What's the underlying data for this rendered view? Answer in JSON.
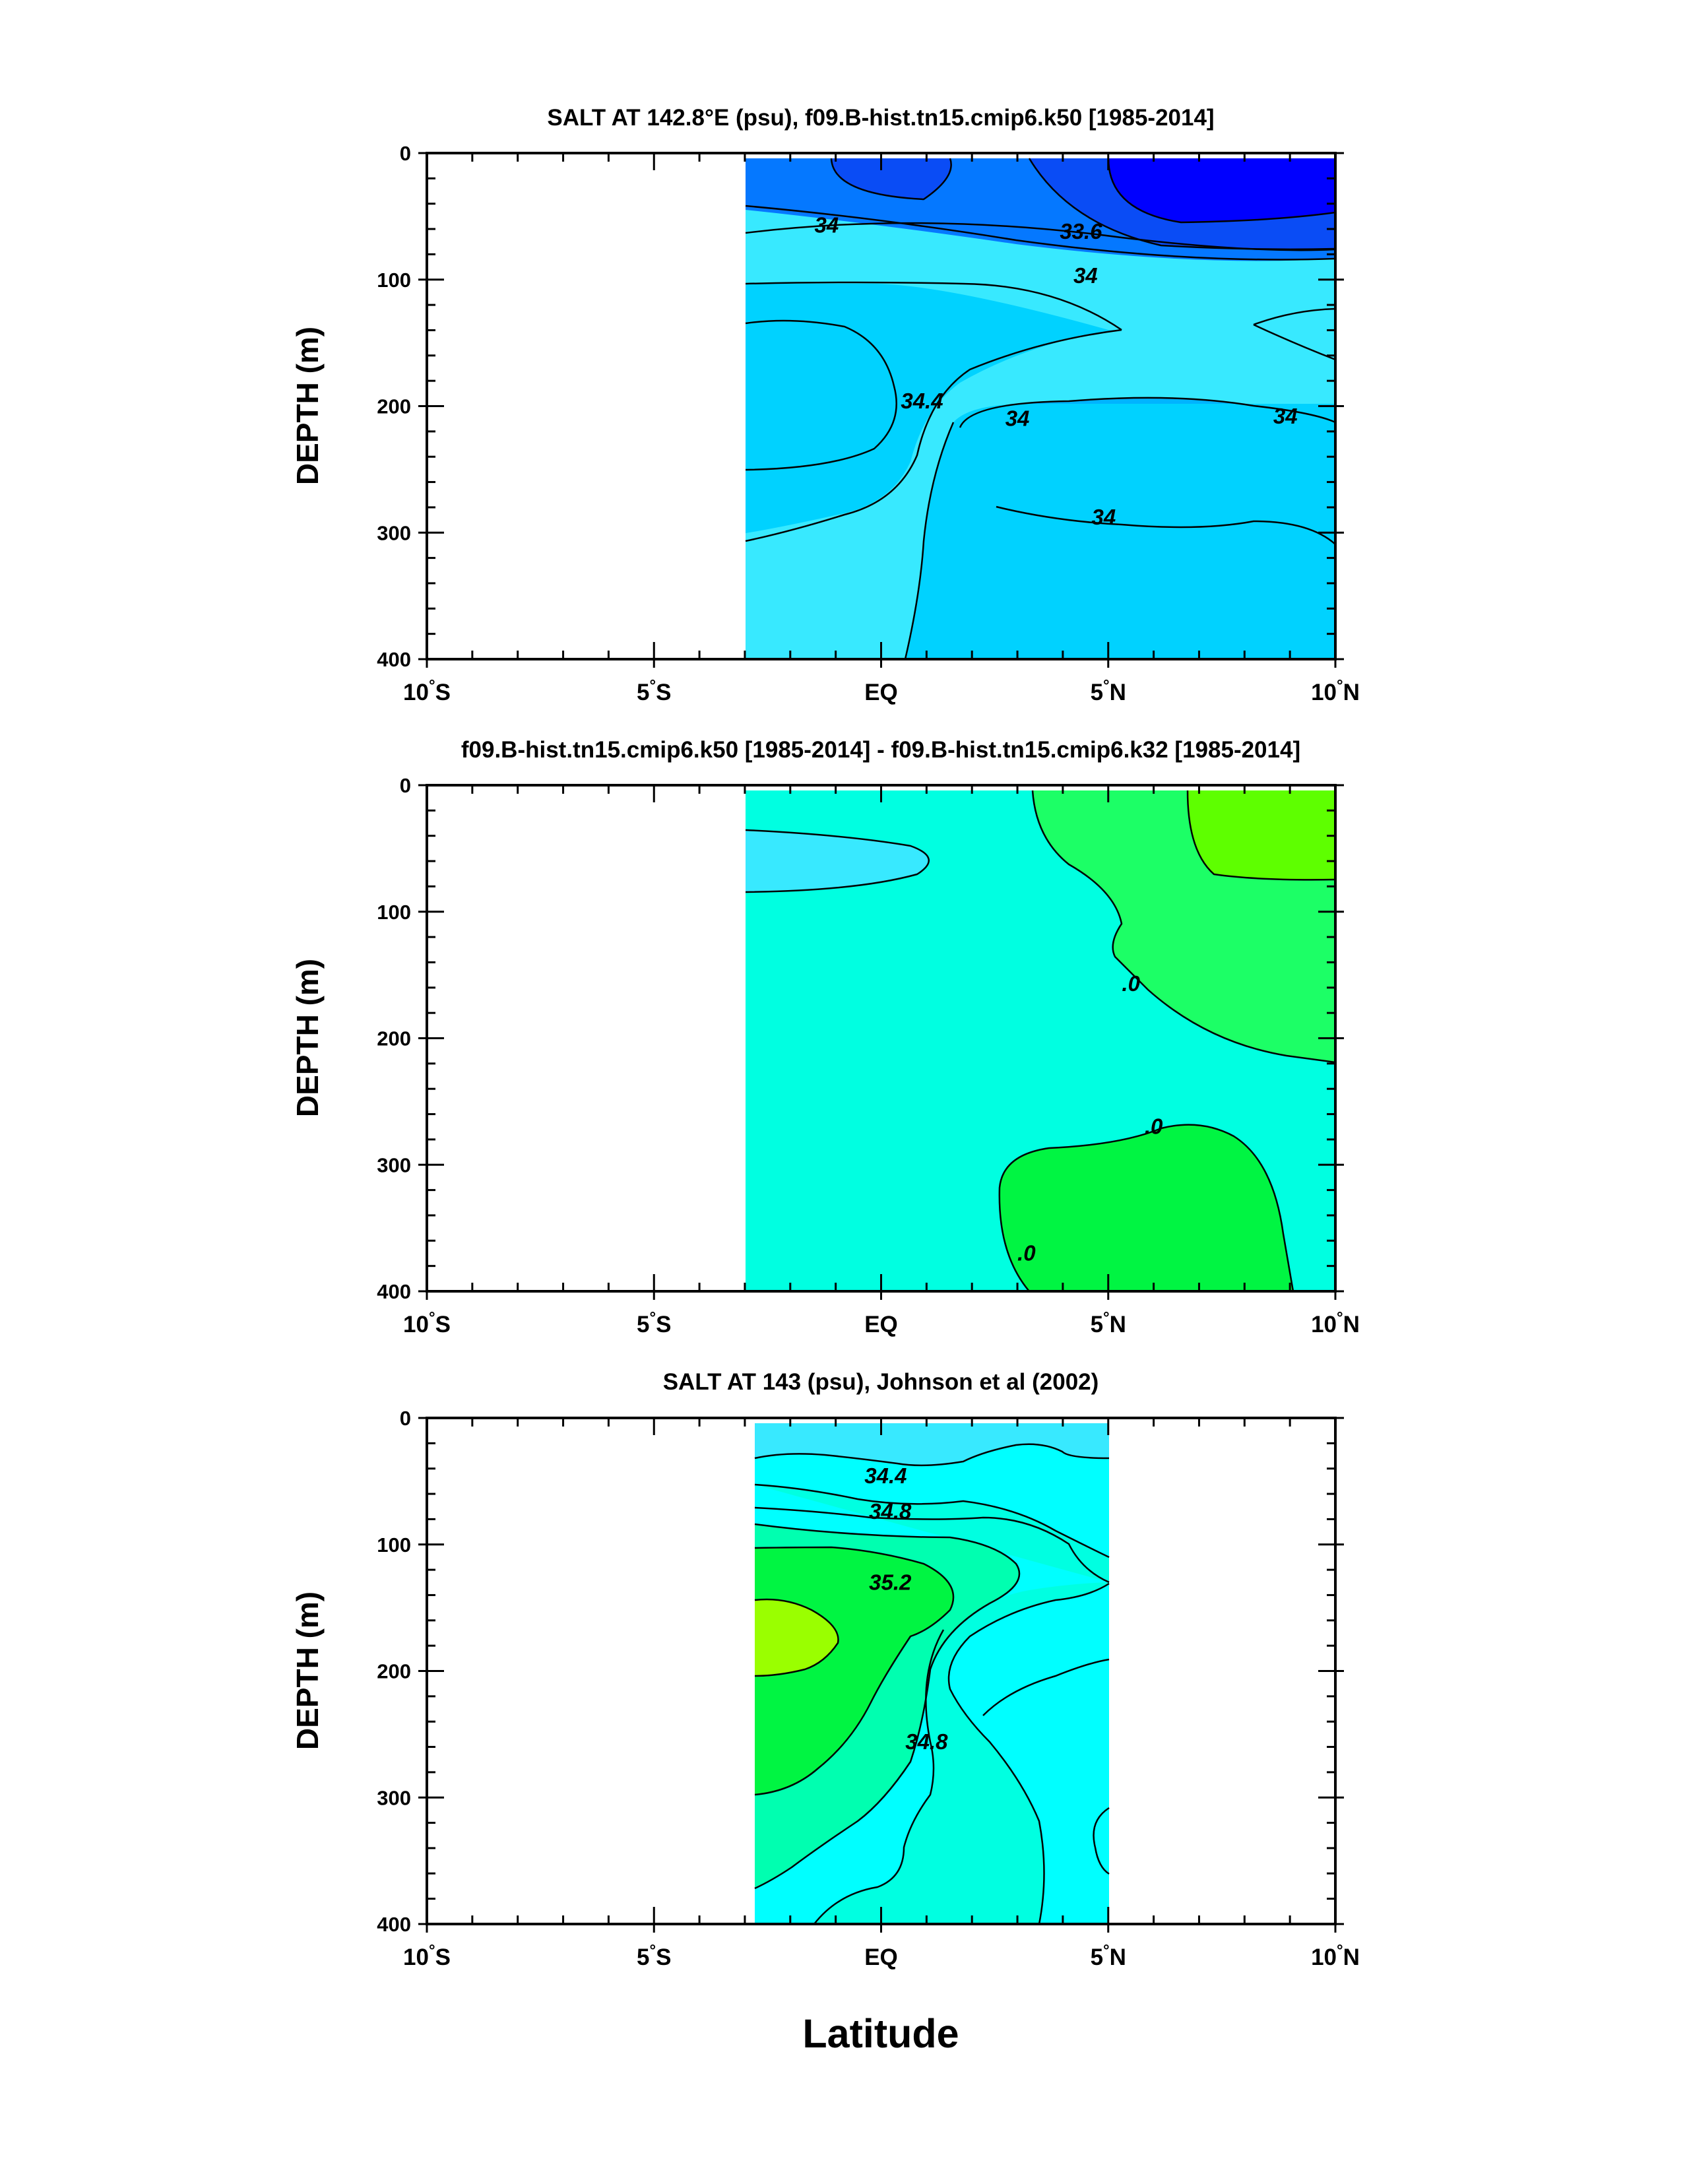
{
  "figure": {
    "xlabel": "Latitude",
    "colors": {
      "blue_deep": "#0000ff",
      "blue_1": "#0a4cf5",
      "blue_2": "#0578ff",
      "blue_3": "#00b4ff",
      "blue_4": "#00d2ff",
      "cyan_1": "#38e9ff",
      "cyan_2": "#00ffff",
      "aqua": "#00ffe1",
      "teal_green": "#00ffb0",
      "green_1": "#1cff66",
      "green_2": "#00f542",
      "lime": "#5eff00",
      "yellow_green": "#9aff00"
    }
  },
  "chart_data": [
    {
      "type": "contour",
      "title": "SALT AT 142.8°E (psu), f09.B-hist.tn15.cmip6.k50 [1985-2014]",
      "ylabel": "DEPTH (m)",
      "xlabel": "",
      "xlim": [
        -10,
        10
      ],
      "ylim": [
        400,
        0
      ],
      "x_ticks": [
        {
          "value": -10,
          "label": "10°S"
        },
        {
          "value": -5,
          "label": "5°S"
        },
        {
          "value": 0,
          "label": "EQ"
        },
        {
          "value": 5,
          "label": "5°N"
        },
        {
          "value": 10,
          "label": "10°N"
        }
      ],
      "y_ticks": [
        0,
        100,
        200,
        300,
        400
      ],
      "data_extent": {
        "lat": [
          -3,
          10
        ],
        "depth": [
          5,
          400
        ]
      },
      "contour_labels": [
        {
          "text": "34",
          "lat": -1.2,
          "depth": 57
        },
        {
          "text": "33.6",
          "lat": 4.4,
          "depth": 62
        },
        {
          "text": "34",
          "lat": 4.5,
          "depth": 97
        },
        {
          "text": "34.4",
          "lat": 0.9,
          "depth": 196
        },
        {
          "text": "34",
          "lat": 3.0,
          "depth": 210
        },
        {
          "text": "34",
          "lat": 8.9,
          "depth": 208
        },
        {
          "text": "34",
          "lat": 4.9,
          "depth": 288
        }
      ]
    },
    {
      "type": "contour",
      "title": "f09.B-hist.tn15.cmip6.k50 [1985-2014] - f09.B-hist.tn15.cmip6.k32 [1985-2014]",
      "ylabel": "DEPTH (m)",
      "xlabel": "",
      "xlim": [
        -10,
        10
      ],
      "ylim": [
        400,
        0
      ],
      "x_ticks": [
        {
          "value": -10,
          "label": "10°S"
        },
        {
          "value": -5,
          "label": "5°S"
        },
        {
          "value": 0,
          "label": "EQ"
        },
        {
          "value": 5,
          "label": "5°N"
        },
        {
          "value": 10,
          "label": "10°N"
        }
      ],
      "y_ticks": [
        0,
        100,
        200,
        300,
        400
      ],
      "data_extent": {
        "lat": [
          -3,
          10
        ],
        "depth": [
          5,
          400
        ]
      },
      "contour_labels": [
        {
          "text": ".0",
          "lat": 5.5,
          "depth": 157
        },
        {
          "text": ".0",
          "lat": 6.0,
          "depth": 270
        },
        {
          "text": ".0",
          "lat": 3.2,
          "depth": 370
        }
      ]
    },
    {
      "type": "contour",
      "title": "SALT AT 143 (psu), Johnson et al (2002)",
      "ylabel": "DEPTH (m)",
      "xlabel": "Latitude",
      "xlim": [
        -10,
        10
      ],
      "ylim": [
        400,
        0
      ],
      "x_ticks": [
        {
          "value": -10,
          "label": "10°S"
        },
        {
          "value": -5,
          "label": "5°S"
        },
        {
          "value": 0,
          "label": "EQ"
        },
        {
          "value": 5,
          "label": "5°N"
        },
        {
          "value": 10,
          "label": "10°N"
        }
      ],
      "y_ticks": [
        0,
        100,
        200,
        300,
        400
      ],
      "data_extent": {
        "lat": [
          -2.8,
          5
        ],
        "depth": [
          5,
          400
        ]
      },
      "contour_labels": [
        {
          "text": "34.4",
          "lat": 0.1,
          "depth": 46
        },
        {
          "text": "34.8",
          "lat": 0.2,
          "depth": 74
        },
        {
          "text": "35.2",
          "lat": 0.2,
          "depth": 130
        },
        {
          "text": "34.8",
          "lat": 1.0,
          "depth": 256
        }
      ]
    }
  ]
}
